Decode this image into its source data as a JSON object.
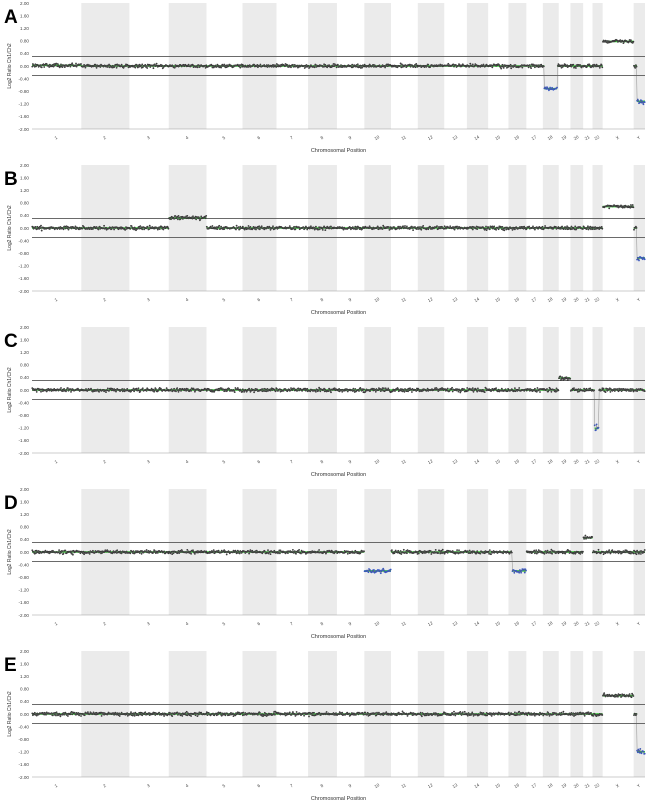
{
  "chart_data": {
    "type": "scatter",
    "description_free": true,
    "shared": {
      "ylabel": "Log2 Ratio Ch1/Ch2",
      "xlabel": "Chromosomal Position",
      "y_ticks": [
        "2.00",
        "1.60",
        "1.20",
        "0.80",
        "0.40",
        "0.00",
        "-0.40",
        "-0.80",
        "-1.20",
        "-1.60",
        "-2.00"
      ],
      "ylim": [
        -2.0,
        2.0
      ],
      "threshold_lines": [
        0.3,
        -0.3
      ],
      "chromosomes": [
        "1",
        "2",
        "3",
        "4",
        "5",
        "6",
        "7",
        "8",
        "9",
        "10",
        "11",
        "12",
        "13",
        "14",
        "15",
        "16",
        "17",
        "18",
        "19",
        "20",
        "21",
        "22",
        "X",
        "Y"
      ],
      "colors": {
        "points": "#333333",
        "segment": "#33cc33",
        "shade": "#ebebeb",
        "threshold": "#555555",
        "loss_points": "#3355cc"
      }
    },
    "panels": [
      {
        "label": "A",
        "chrom_sizes": [
          248,
          242,
          198,
          190,
          181,
          171,
          159,
          145,
          138,
          134,
          135,
          133,
          114,
          107,
          102,
          90,
          83,
          80,
          59,
          64,
          47,
          51,
          156,
          57
        ],
        "segments": [
          {
            "chrom": "1",
            "start": 0,
            "end": 1,
            "value": 0.02
          },
          {
            "chrom": "18",
            "start": 0.1,
            "end": 0.9,
            "value": -0.72
          },
          {
            "chrom": "X",
            "start": 0,
            "end": 1,
            "value": 0.78
          },
          {
            "chrom": "Y",
            "start": 0.3,
            "end": 1,
            "value": -1.12
          }
        ]
      },
      {
        "label": "B",
        "chrom_sizes": [
          248,
          242,
          198,
          190,
          181,
          171,
          159,
          145,
          138,
          134,
          135,
          133,
          114,
          107,
          102,
          90,
          83,
          80,
          59,
          64,
          47,
          51,
          156,
          57
        ],
        "segments": [
          {
            "chrom": "4",
            "start": 0,
            "end": 1,
            "value": 0.32
          },
          {
            "chrom": "X",
            "start": 0,
            "end": 1,
            "value": 0.68
          },
          {
            "chrom": "Y",
            "start": 0.3,
            "end": 1,
            "value": -0.95
          }
        ]
      },
      {
        "label": "C",
        "chrom_sizes": [
          248,
          242,
          198,
          190,
          181,
          171,
          159,
          145,
          138,
          134,
          135,
          133,
          114,
          107,
          102,
          90,
          83,
          80,
          59,
          64,
          47,
          51,
          156,
          57
        ],
        "segments": [
          {
            "chrom": "19",
            "start": 0,
            "end": 1,
            "value": 0.38
          },
          {
            "chrom": "22",
            "start": 0.2,
            "end": 0.6,
            "value": -1.22
          }
        ]
      },
      {
        "label": "D",
        "chrom_sizes": [
          248,
          242,
          198,
          190,
          181,
          171,
          159,
          145,
          138,
          134,
          135,
          133,
          114,
          107,
          102,
          90,
          83,
          80,
          59,
          64,
          47,
          51,
          156,
          57
        ],
        "segments": [
          {
            "chrom": "10",
            "start": 0,
            "end": 1,
            "value": -0.6
          },
          {
            "chrom": "16",
            "start": 0.2,
            "end": 1,
            "value": -0.6
          },
          {
            "chrom": "21",
            "start": 0,
            "end": 1,
            "value": 0.45
          }
        ]
      },
      {
        "label": "E",
        "chrom_sizes": [
          248,
          242,
          198,
          190,
          181,
          171,
          159,
          145,
          138,
          134,
          135,
          133,
          114,
          107,
          102,
          90,
          83,
          80,
          59,
          64,
          47,
          51,
          156,
          57
        ],
        "segments": [
          {
            "chrom": "X",
            "start": 0,
            "end": 1,
            "value": 0.58
          },
          {
            "chrom": "Y",
            "start": 0.3,
            "end": 1,
            "value": -1.2
          }
        ]
      }
    ]
  }
}
